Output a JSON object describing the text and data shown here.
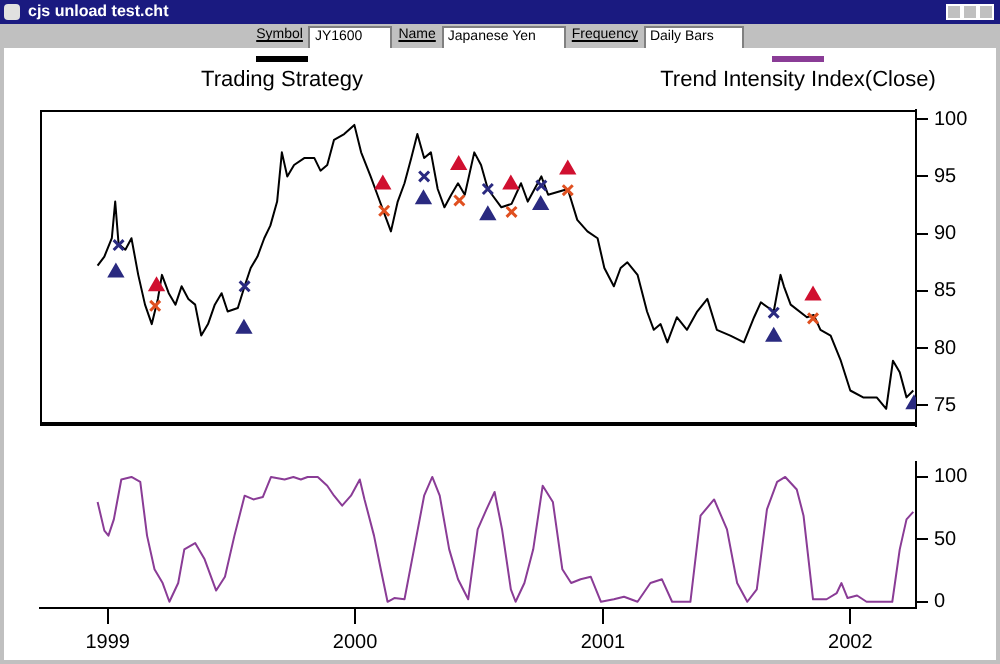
{
  "chart_data": [
    {
      "type": "line",
      "annotations": [
        "cjs unload test.cht",
        "Symbol",
        "JY1600",
        "Name",
        "Japanese Yen",
        "Frequency",
        "Daily Bars"
      ],
      "xlim": [
        "1998-09-23",
        "2002-04-08"
      ],
      "ylim": [
        73.2,
        100.8
      ],
      "yticks": [
        75,
        80,
        85,
        90,
        95,
        100
      ],
      "tick_labels": "y",
      "grid": false,
      "legend": "top",
      "marker": "none",
      "line_style": "solid",
      "series": [
        {
          "name": "Trading Strategy",
          "color": "#000000",
          "x": [
            "1998-12-17",
            "1998-12-27",
            "1999-01-07",
            "1999-01-12",
            "1999-01-17",
            "1999-01-27",
            "1999-02-05",
            "1999-02-15",
            "1999-02-25",
            "1999-03-07",
            "1999-03-16",
            "1999-03-22",
            "1999-04-01",
            "1999-04-11",
            "1999-04-20",
            "1999-04-30",
            "1999-05-10",
            "1999-05-19",
            "1999-05-29",
            "1999-06-08",
            "1999-06-18",
            "1999-06-27",
            "1999-07-12",
            "1999-07-22",
            "1999-07-31",
            "1999-08-10",
            "1999-08-20",
            "1999-08-29",
            "1999-09-08",
            "1999-09-15",
            "1999-09-23",
            "1999-10-03",
            "1999-10-18",
            "1999-11-02",
            "1999-11-11",
            "1999-11-21",
            "1999-12-01",
            "1999-12-16",
            "1999-12-31",
            "2000-01-10",
            "2000-01-24",
            "2000-02-03",
            "2000-02-13",
            "2000-02-23",
            "2000-03-04",
            "2000-03-14",
            "2000-03-24",
            "2000-04-02",
            "2000-04-12",
            "2000-04-22",
            "2000-05-02",
            "2000-05-12",
            "2000-05-22",
            "2000-06-01",
            "2000-06-11",
            "2000-06-25",
            "2000-07-05",
            "2000-07-15",
            "2000-08-04",
            "2000-08-19",
            "2000-09-02",
            "2000-09-12",
            "2000-10-02",
            "2000-10-12",
            "2000-11-10",
            "2000-11-24",
            "2000-12-09",
            "2000-12-24",
            "2001-01-03",
            "2001-01-17",
            "2001-01-27",
            "2001-02-06",
            "2001-02-21",
            "2001-03-07",
            "2001-03-17",
            "2001-03-27",
            "2001-04-06",
            "2001-04-20",
            "2001-05-05",
            "2001-05-20",
            "2001-06-04",
            "2001-06-18",
            "2001-07-08",
            "2001-07-28",
            "2001-08-12",
            "2001-08-22",
            "2001-09-10",
            "2001-09-20",
            "2001-09-25",
            "2001-10-05",
            "2001-10-29",
            "2001-11-08",
            "2001-11-18",
            "2001-12-03",
            "2001-12-18",
            "2002-01-01",
            "2002-01-20",
            "2002-02-09",
            "2002-02-23",
            "2002-03-05",
            "2002-03-15",
            "2002-03-25",
            "2002-04-04"
          ],
          "values": [
            87.2,
            88.0,
            89.6,
            92.8,
            89.1,
            88.6,
            89.6,
            86.4,
            83.8,
            82.1,
            84.3,
            86.4,
            84.8,
            83.8,
            85.4,
            84.3,
            83.8,
            81.1,
            82.1,
            83.8,
            84.8,
            83.2,
            83.5,
            85.4,
            87.0,
            88.0,
            89.6,
            90.7,
            92.8,
            97.1,
            95.0,
            96.0,
            96.6,
            96.6,
            95.5,
            96.0,
            98.2,
            98.7,
            99.5,
            97.1,
            95.0,
            93.4,
            91.8,
            90.2,
            92.8,
            94.4,
            96.6,
            98.7,
            96.6,
            97.1,
            93.9,
            92.3,
            93.4,
            94.4,
            93.4,
            97.1,
            96.0,
            93.9,
            92.3,
            92.6,
            94.4,
            92.8,
            95.0,
            93.4,
            93.9,
            91.2,
            90.2,
            89.6,
            87.0,
            85.4,
            87.0,
            87.5,
            86.4,
            83.2,
            81.6,
            82.1,
            80.5,
            82.7,
            81.6,
            83.2,
            84.3,
            81.6,
            81.1,
            80.5,
            82.7,
            84.0,
            83.2,
            86.4,
            85.4,
            83.8,
            82.7,
            82.9,
            81.6,
            81.1,
            78.9,
            76.3,
            75.7,
            75.7,
            74.7,
            78.9,
            77.9,
            75.7,
            76.3
          ]
        },
        {
          "type": "scatter",
          "marker": "triangle",
          "color": "#2a2a80",
          "x": [
            "1999-01-13",
            "1999-07-21",
            "2000-04-11",
            "2000-07-15",
            "2000-10-01",
            "2001-09-10",
            "2002-04-05"
          ],
          "values": [
            86.6,
            81.7,
            93.0,
            91.6,
            92.5,
            81.0,
            75.1
          ]
        },
        {
          "type": "scatter",
          "marker": "triangle",
          "color": "#d01030",
          "x": [
            "1999-03-14",
            "2000-02-11",
            "2000-06-02",
            "2000-08-18",
            "2000-11-10",
            "2001-11-07"
          ],
          "values": [
            85.4,
            94.3,
            96.0,
            94.3,
            95.6,
            84.6
          ]
        },
        {
          "type": "scatter",
          "marker": "cross",
          "colors": [
            "#2a2a80",
            "#2a2a80",
            "#2a2a80",
            "#2a2a80",
            "#2a2a80",
            "#2a2a80",
            "#e05020",
            "#e05020",
            "#e05020",
            "#e05020",
            "#e05020",
            "#e05020"
          ],
          "x": [
            "1999-01-17",
            "1999-07-22",
            "2000-04-12",
            "2000-07-15",
            "2000-10-02",
            "2001-09-10",
            "1999-03-12",
            "2000-02-13",
            "2000-06-03",
            "2000-08-19",
            "2000-11-10",
            "2001-11-07"
          ],
          "values": [
            89.0,
            85.4,
            95.0,
            93.9,
            94.2,
            83.1,
            83.7,
            92.0,
            92.9,
            91.9,
            93.8,
            82.6
          ]
        }
      ]
    },
    {
      "type": "line",
      "xlim": [
        "1998-09-23",
        "2002-04-08"
      ],
      "xticks": [
        "1999",
        "2000",
        "2001",
        "2002"
      ],
      "ylim": [
        -5,
        112
      ],
      "yticks": [
        0,
        50,
        100
      ],
      "grid": false,
      "legend": "top",
      "marker": "none",
      "line_style": "solid",
      "series": [
        {
          "name": "Trend Intensity Index(Close)",
          "color": "#8a3c96",
          "x": [
            "1998-12-17",
            "1998-12-27",
            "1999-01-02",
            "1999-01-10",
            "1999-01-21",
            "1999-02-05",
            "1999-02-18",
            "1999-02-28",
            "1999-03-11",
            "1999-03-23",
            "1999-04-02",
            "1999-04-15",
            "1999-04-24",
            "1999-05-10",
            "1999-05-24",
            "1999-06-10",
            "1999-06-23",
            "1999-07-07",
            "1999-07-22",
            "1999-08-04",
            "1999-08-18",
            "1999-08-30",
            "1999-09-19",
            "1999-10-02",
            "1999-10-13",
            "1999-10-23",
            "1999-11-07",
            "1999-11-21",
            "1999-12-01",
            "1999-12-13",
            "1999-12-26",
            "2000-01-08",
            "2000-01-15",
            "2000-01-29",
            "2000-02-08",
            "2000-02-18",
            "2000-02-28",
            "2000-03-14",
            "2000-03-28",
            "2000-04-12",
            "2000-04-24",
            "2000-05-05",
            "2000-05-19",
            "2000-06-01",
            "2000-06-16",
            "2000-06-30",
            "2000-07-13",
            "2000-07-25",
            "2000-08-05",
            "2000-08-18",
            "2000-08-25",
            "2000-09-07",
            "2000-09-20",
            "2000-10-04",
            "2000-10-19",
            "2000-11-02",
            "2000-11-15",
            "2000-11-29",
            "2000-12-14",
            "2000-12-29",
            "2001-01-17",
            "2001-02-01",
            "2001-02-21",
            "2001-03-12",
            "2001-03-29",
            "2001-04-13",
            "2001-05-10",
            "2001-05-25",
            "2001-06-14",
            "2001-07-03",
            "2001-07-18",
            "2001-08-02",
            "2001-08-16",
            "2001-08-31",
            "2001-09-15",
            "2001-09-27",
            "2001-10-14",
            "2001-10-24",
            "2001-11-07",
            "2001-11-27",
            "2001-12-12",
            "2001-12-19",
            "2001-12-28",
            "2002-01-11",
            "2002-01-25",
            "2002-03-04",
            "2002-03-15",
            "2002-03-25",
            "2002-04-04"
          ],
          "values": [
            80,
            57,
            53,
            66,
            98,
            100,
            96,
            53,
            26,
            15,
            0,
            15,
            42,
            47,
            34,
            9,
            20,
            53,
            85,
            82,
            84,
            100,
            98,
            100,
            98,
            100,
            100,
            93,
            85,
            77,
            85,
            98,
            82,
            53,
            26,
            0,
            3,
            2,
            42,
            85,
            100,
            85,
            42,
            18,
            2,
            58,
            74,
            88,
            58,
            10,
            0,
            15,
            42,
            93,
            80,
            26,
            15,
            18,
            20,
            0,
            2,
            4,
            0,
            15,
            18,
            0,
            0,
            69,
            82,
            58,
            15,
            0,
            10,
            74,
            96,
            100,
            90,
            69,
            2,
            2,
            7,
            15,
            3,
            5,
            0,
            0,
            42,
            66,
            72
          ]
        }
      ]
    }
  ]
}
